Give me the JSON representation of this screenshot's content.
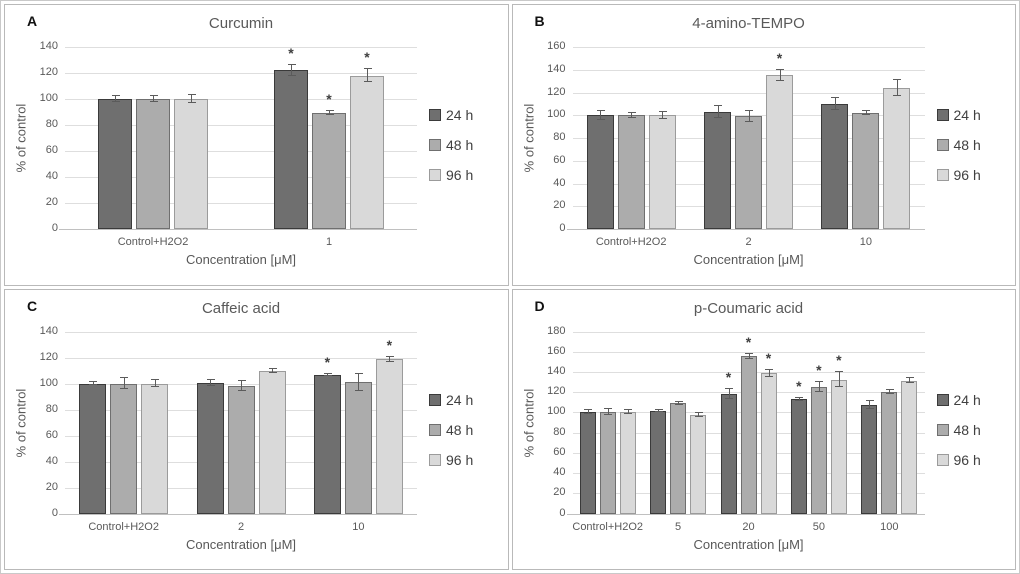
{
  "legend": {
    "items": [
      {
        "label": "24 h",
        "color": "#6f6f6f",
        "border": "#3a3a3a"
      },
      {
        "label": "48 h",
        "color": "#acacac",
        "border": "#6f6f6f"
      },
      {
        "label": "96 h",
        "color": "#d9d9d9",
        "border": "#9b9b9b"
      }
    ],
    "position": "right"
  },
  "chart_data": [
    {
      "panel": "A",
      "type": "bar",
      "title": "Curcumin",
      "xlabel": "Concentration [μM]",
      "ylabel": "% of control",
      "ylim": [
        0,
        140
      ],
      "ystep": 20,
      "grid": true,
      "categories": [
        "Control+H2O2",
        "1"
      ],
      "series": [
        {
          "name": "24 h",
          "values": [
            100,
            122
          ],
          "errors": [
            2,
            4
          ],
          "sig": [
            "",
            "*"
          ]
        },
        {
          "name": "48 h",
          "values": [
            100,
            89
          ],
          "errors": [
            2,
            1.5
          ],
          "sig": [
            "",
            "*"
          ]
        },
        {
          "name": "96 h",
          "values": [
            100,
            118
          ],
          "errors": [
            3,
            5
          ],
          "sig": [
            "",
            "*"
          ]
        }
      ]
    },
    {
      "panel": "B",
      "type": "bar",
      "title": "4-amino-TEMPO",
      "xlabel": "Concentration [μM]",
      "ylabel": "% of control",
      "ylim": [
        0,
        160
      ],
      "ystep": 20,
      "grid": true,
      "categories": [
        "Control+H2O2",
        "2",
        "10"
      ],
      "series": [
        {
          "name": "24 h",
          "values": [
            100,
            103,
            110
          ],
          "errors": [
            4,
            5,
            5
          ],
          "sig": [
            "",
            "",
            ""
          ]
        },
        {
          "name": "48 h",
          "values": [
            100,
            99,
            102
          ],
          "errors": [
            2,
            5,
            2
          ],
          "sig": [
            "",
            "",
            ""
          ]
        },
        {
          "name": "96 h",
          "values": [
            100,
            135,
            124
          ],
          "errors": [
            3,
            5,
            7
          ],
          "sig": [
            "",
            "*",
            ""
          ]
        }
      ]
    },
    {
      "panel": "C",
      "type": "bar",
      "title": "Caffeic acid",
      "xlabel": "Concentration [μM]",
      "ylabel": "% of control",
      "ylim": [
        0,
        140
      ],
      "ystep": 20,
      "grid": true,
      "categories": [
        "Control+H2O2",
        "2",
        "10"
      ],
      "series": [
        {
          "name": "24 h",
          "values": [
            100,
            100.5,
            106.5
          ],
          "errors": [
            1.5,
            2.5,
            1
          ],
          "sig": [
            "",
            "",
            "*"
          ]
        },
        {
          "name": "48 h",
          "values": [
            100,
            98,
            101
          ],
          "errors": [
            4,
            4,
            6.5
          ],
          "sig": [
            "",
            "",
            ""
          ]
        },
        {
          "name": "96 h",
          "values": [
            100,
            109.5,
            118.5
          ],
          "errors": [
            3,
            1.5,
            2
          ],
          "sig": [
            "",
            "",
            "*"
          ]
        }
      ]
    },
    {
      "panel": "D",
      "type": "bar",
      "title": "p-Coumaric acid",
      "xlabel": "Concentration [μM]",
      "ylabel": "% of control",
      "ylim": [
        0,
        180
      ],
      "ystep": 20,
      "grid": true,
      "categories": [
        "Control+H2O2",
        "5",
        "20",
        "50",
        "100"
      ],
      "series": [
        {
          "name": "24 h",
          "values": [
            100,
            101,
            118,
            113,
            107.5
          ],
          "errors": [
            2,
            1,
            5,
            1.5,
            4
          ],
          "sig": [
            "",
            "",
            "*",
            "*",
            ""
          ]
        },
        {
          "name": "48 h",
          "values": [
            100,
            109,
            155.5,
            125.5,
            120.5
          ],
          "errors": [
            3,
            1.5,
            2.5,
            5,
            2
          ],
          "sig": [
            "",
            "",
            "*",
            "*",
            ""
          ]
        },
        {
          "name": "96 h",
          "values": [
            100,
            97,
            138.5,
            132.5,
            131.5
          ],
          "errors": [
            2,
            2,
            3,
            7,
            2.5
          ],
          "sig": [
            "",
            "",
            "*",
            "*",
            ""
          ]
        }
      ]
    }
  ]
}
